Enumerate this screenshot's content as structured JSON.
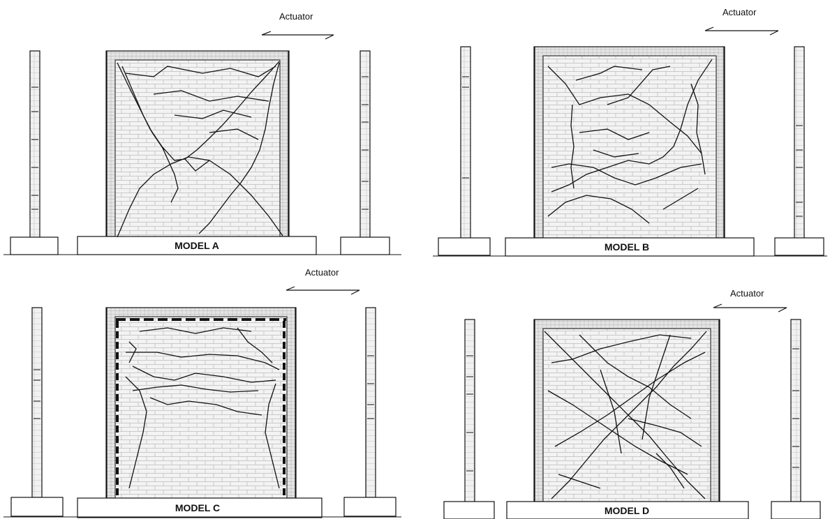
{
  "actuator_label": "Actuator",
  "panels": [
    {
      "id": "a",
      "title": "MODEL A",
      "cracks": "diagonal-x",
      "tie_columns": false
    },
    {
      "id": "b",
      "title": "MODEL B",
      "cracks": "mesh",
      "tie_columns": false
    },
    {
      "id": "c",
      "title": "MODEL C",
      "cracks": "horizontal-bands",
      "tie_columns": true
    },
    {
      "id": "d",
      "title": "MODEL D",
      "cracks": "dense-diagonal",
      "tie_columns": false
    }
  ],
  "colors": {
    "ink": "#111111",
    "brick": "#cfcfcf",
    "background": "#ffffff"
  }
}
